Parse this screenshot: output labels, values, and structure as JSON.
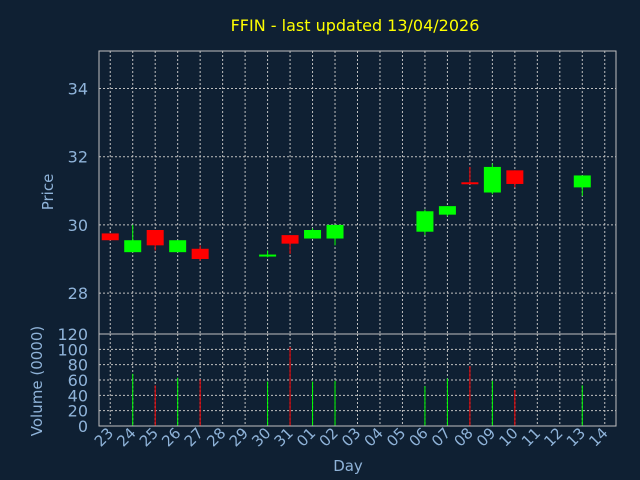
{
  "colors": {
    "background": "#0f2033",
    "title": "#ffff00",
    "axis_text": "#8fb3d9",
    "frame": "#c0c0c0",
    "grid": "#c0c0c0",
    "up": "#00ff00",
    "down": "#ff0000"
  },
  "chart_data": [
    {
      "type": "candlestick",
      "title": "FFIN - last updated 13/04/2026",
      "ylabel": "Price",
      "ylim": [
        26.8,
        35.1
      ],
      "yticks": [
        28,
        30,
        32,
        34
      ],
      "grid": true,
      "categories": [
        "23",
        "24",
        "25",
        "26",
        "27",
        "28",
        "29",
        "30",
        "31",
        "01",
        "02",
        "03",
        "04",
        "05",
        "06",
        "07",
        "08",
        "09",
        "10",
        "11",
        "12",
        "13",
        "14"
      ],
      "candles": [
        {
          "day": "23",
          "open": 29.75,
          "high": 29.75,
          "low": 29.55,
          "close": 29.55,
          "dir": "down"
        },
        {
          "day": "24",
          "open": 29.2,
          "high": 30.0,
          "low": 29.2,
          "close": 29.55,
          "dir": "up"
        },
        {
          "day": "25",
          "open": 29.85,
          "high": 29.85,
          "low": 29.25,
          "close": 29.4,
          "dir": "down"
        },
        {
          "day": "26",
          "open": 29.2,
          "high": 29.55,
          "low": 29.2,
          "close": 29.55,
          "dir": "up"
        },
        {
          "day": "27",
          "open": 29.3,
          "high": 29.4,
          "low": 28.95,
          "close": 29.0,
          "dir": "down"
        },
        {
          "day": "30",
          "open": 29.1,
          "high": 29.25,
          "low": 29.05,
          "close": 29.13,
          "dir": "up"
        },
        {
          "day": "31",
          "open": 29.7,
          "high": 29.7,
          "low": 29.15,
          "close": 29.45,
          "dir": "down"
        },
        {
          "day": "01",
          "open": 29.6,
          "high": 29.9,
          "low": 29.6,
          "close": 29.85,
          "dir": "up"
        },
        {
          "day": "02",
          "open": 29.6,
          "high": 30.0,
          "low": 29.4,
          "close": 30.0,
          "dir": "up"
        },
        {
          "day": "06",
          "open": 29.8,
          "high": 30.45,
          "low": 29.7,
          "close": 30.4,
          "dir": "up"
        },
        {
          "day": "07",
          "open": 30.3,
          "high": 30.55,
          "low": 30.25,
          "close": 30.55,
          "dir": "up"
        },
        {
          "day": "08",
          "open": 31.25,
          "high": 31.7,
          "low": 31.2,
          "close": 31.2,
          "dir": "down"
        },
        {
          "day": "09",
          "open": 30.95,
          "high": 31.8,
          "low": 30.9,
          "close": 31.7,
          "dir": "up"
        },
        {
          "day": "10",
          "open": 31.6,
          "high": 31.6,
          "low": 31.1,
          "close": 31.2,
          "dir": "down"
        },
        {
          "day": "13",
          "open": 31.1,
          "high": 31.45,
          "low": 30.85,
          "close": 31.45,
          "dir": "up"
        }
      ]
    },
    {
      "type": "bar",
      "xlabel": "Day",
      "ylabel": "Volume (0000)",
      "ylim": [
        0,
        120
      ],
      "yticks": [
        0,
        20,
        40,
        60,
        80,
        100,
        120
      ],
      "categories": [
        "23",
        "24",
        "25",
        "26",
        "27",
        "28",
        "29",
        "30",
        "31",
        "01",
        "02",
        "03",
        "04",
        "05",
        "06",
        "07",
        "08",
        "09",
        "10",
        "11",
        "12",
        "13",
        "14"
      ],
      "bars": [
        {
          "day": "24",
          "value": 68,
          "dir": "up"
        },
        {
          "day": "25",
          "value": 53,
          "dir": "down"
        },
        {
          "day": "26",
          "value": 63,
          "dir": "up"
        },
        {
          "day": "27",
          "value": 61,
          "dir": "down"
        },
        {
          "day": "30",
          "value": 58,
          "dir": "up"
        },
        {
          "day": "31",
          "value": 103,
          "dir": "down"
        },
        {
          "day": "01",
          "value": 58,
          "dir": "up"
        },
        {
          "day": "02",
          "value": 59,
          "dir": "up"
        },
        {
          "day": "06",
          "value": 52,
          "dir": "up"
        },
        {
          "day": "07",
          "value": 62,
          "dir": "up"
        },
        {
          "day": "08",
          "value": 78,
          "dir": "down"
        },
        {
          "day": "09",
          "value": 59,
          "dir": "up"
        },
        {
          "day": "10",
          "value": 47,
          "dir": "down"
        },
        {
          "day": "13",
          "value": 53,
          "dir": "up"
        }
      ]
    }
  ]
}
